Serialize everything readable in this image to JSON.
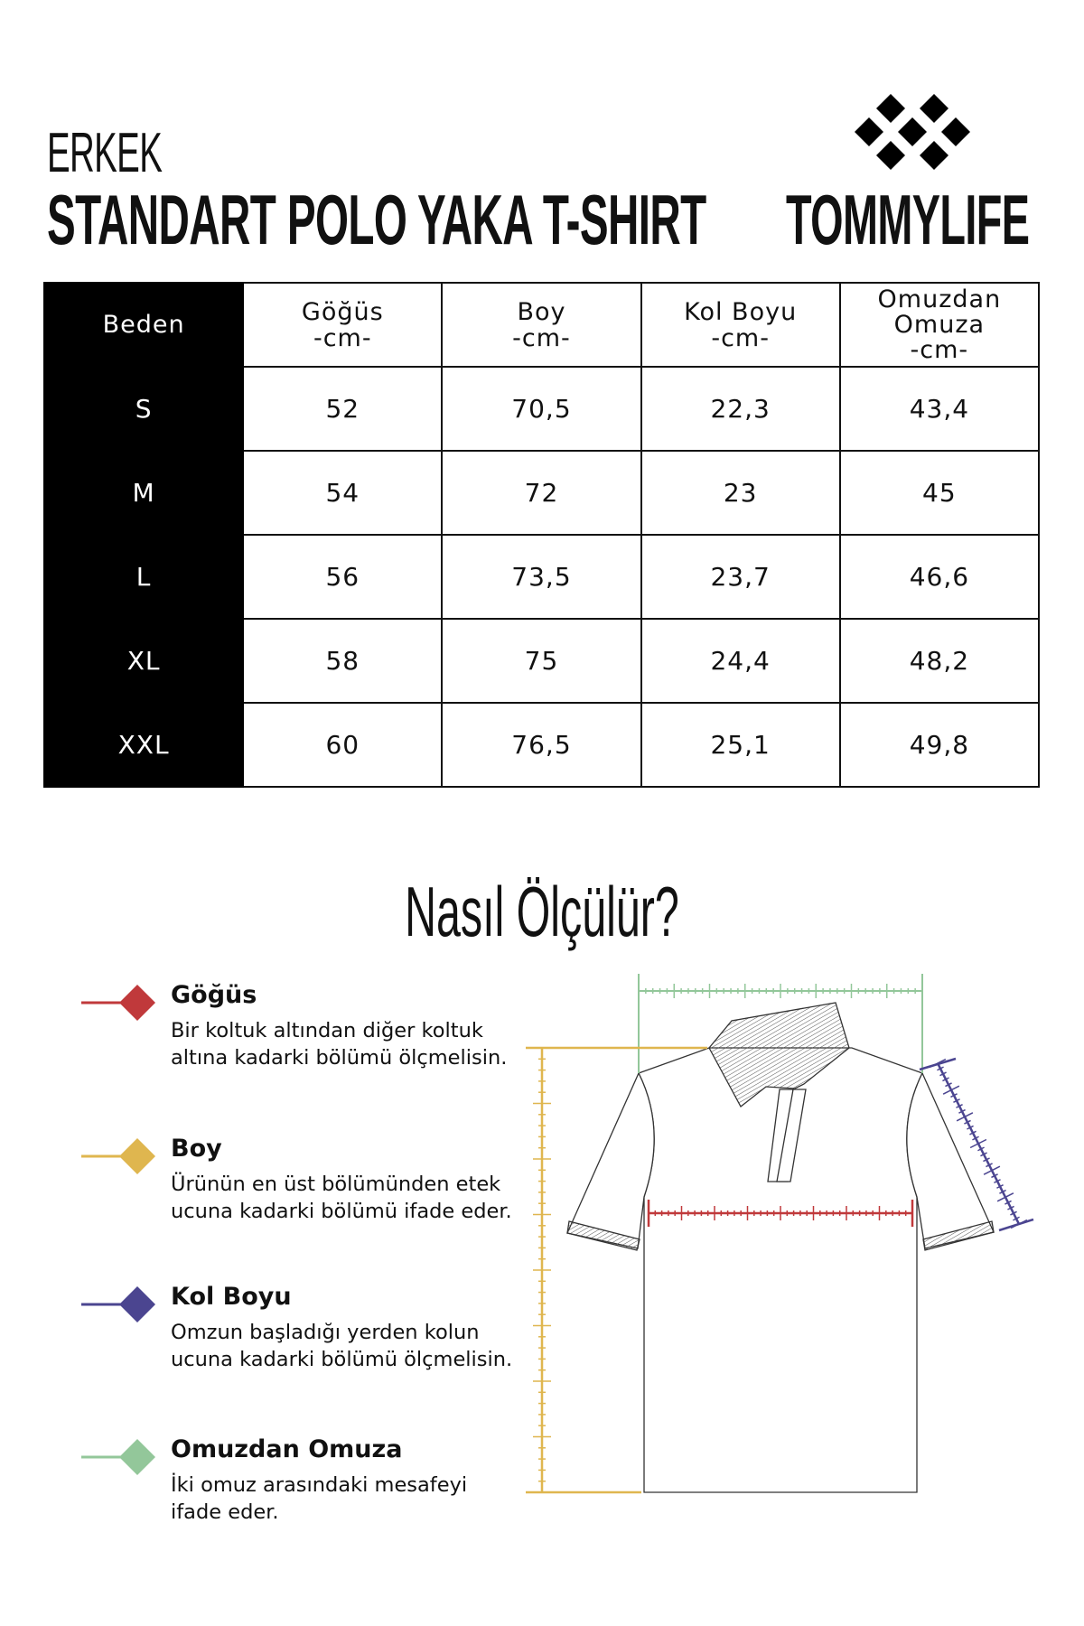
{
  "header": {
    "subtitle": "ERKEK",
    "title": "STANDART POLO YAKA T-SHIRT",
    "brand": "TOMMYLIFE"
  },
  "table": {
    "headers": [
      {
        "line1": "Beden"
      },
      {
        "line1": "Göğüs",
        "line2": "-cm-"
      },
      {
        "line1": "Boy",
        "line2": "-cm-"
      },
      {
        "line1": "Kol Boyu",
        "line2": "-cm-"
      },
      {
        "line1": "Omuzdan",
        "line2": "Omuza",
        "line3": "-cm-"
      }
    ],
    "rows": [
      [
        "S",
        "52",
        "70,5",
        "22,3",
        "43,4"
      ],
      [
        "M",
        "54",
        "72",
        "23",
        "45"
      ],
      [
        "L",
        "56",
        "73,5",
        "23,7",
        "46,6"
      ],
      [
        "XL",
        "58",
        "75",
        "24,4",
        "48,2"
      ],
      [
        "XXL",
        "60",
        "76,5",
        "25,1",
        "49,8"
      ]
    ]
  },
  "howto": {
    "title": "Nasıl Ölçülür?",
    "items": [
      {
        "title": "Göğüs",
        "desc": "Bir koltuk altından diğer koltuk altına kadarki bölümü ölçmelisin.",
        "color": "#c0393b"
      },
      {
        "title": "Boy",
        "desc": "Ürünün en üst bölümünden etek ucuna kadarki bölümü ifade eder.",
        "color": "#dfb64f"
      },
      {
        "title": "Kol Boyu",
        "desc": "Omzun başladığı yerden kolun ucuna kadarki bölümü ölçmelisin.",
        "color": "#4b4590"
      },
      {
        "title": "Omuzdan Omuza",
        "desc": "İki omuz arasındaki mesafeyi ifade eder.",
        "color": "#93c79a"
      }
    ]
  }
}
